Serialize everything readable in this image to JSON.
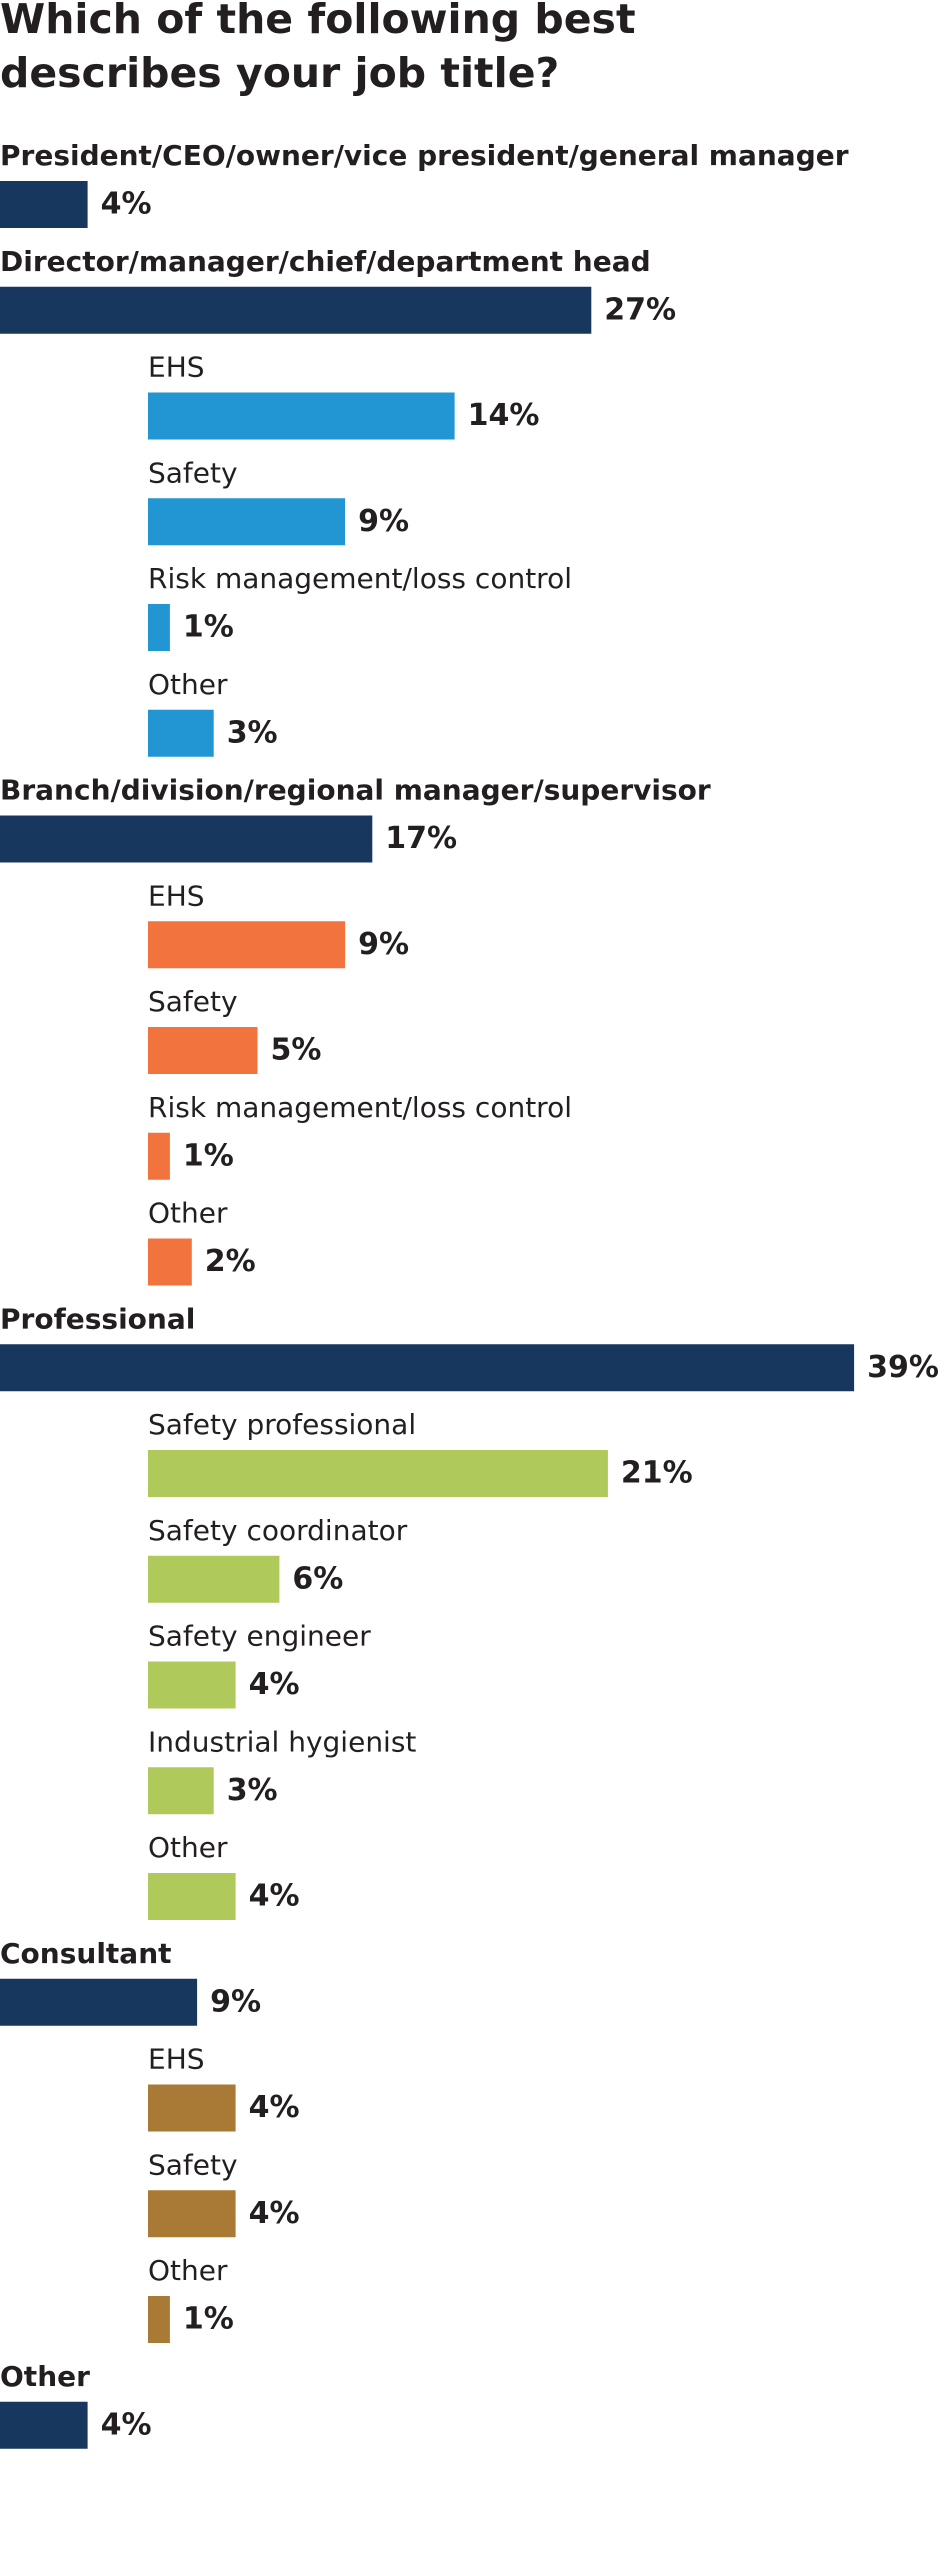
{
  "chart_data": {
    "type": "bar",
    "title": "Which of the following best describes your job title?",
    "groups": [
      {
        "name": "President/CEO/owner/vice president/general manager",
        "value": 4,
        "value_label": "4%",
        "color": "#17375e"
      },
      {
        "name": "Director/manager/chief/department head",
        "value": 27,
        "value_label": "27%",
        "color": "#17375e",
        "item_color": "#2196d3",
        "items": [
          {
            "name": "EHS",
            "value": 14,
            "value_label": "14%"
          },
          {
            "name": "Safety",
            "value": 9,
            "value_label": "9%"
          },
          {
            "name": "Risk management/loss control",
            "value": 1,
            "value_label": "1%"
          },
          {
            "name": "Other",
            "value": 3,
            "value_label": "3%"
          }
        ]
      },
      {
        "name": "Branch/division/regional manager/supervisor",
        "value": 17,
        "value_label": "17%",
        "color": "#17375e",
        "item_color": "#f2733e",
        "items": [
          {
            "name": "EHS",
            "value": 9,
            "value_label": "9%"
          },
          {
            "name": "Safety",
            "value": 5,
            "value_label": "5%"
          },
          {
            "name": "Risk management/loss control",
            "value": 1,
            "value_label": "1%"
          },
          {
            "name": "Other",
            "value": 2,
            "value_label": "2%"
          }
        ]
      },
      {
        "name": "Professional",
        "value": 39,
        "value_label": "39%",
        "color": "#17375e",
        "item_color": "#afc95a",
        "items": [
          {
            "name": "Safety professional",
            "value": 21,
            "value_label": "21%"
          },
          {
            "name": "Safety coordinator",
            "value": 6,
            "value_label": "6%"
          },
          {
            "name": "Safety engineer",
            "value": 4,
            "value_label": "4%"
          },
          {
            "name": "Industrial hygienist",
            "value": 3,
            "value_label": "3%"
          },
          {
            "name": "Other",
            "value": 4,
            "value_label": "4%"
          }
        ]
      },
      {
        "name": "Consultant",
        "value": 9,
        "value_label": "9%",
        "color": "#17375e",
        "item_color": "#a97a35",
        "items": [
          {
            "name": "EHS",
            "value": 4,
            "value_label": "4%"
          },
          {
            "name": "Safety",
            "value": 4,
            "value_label": "4%"
          },
          {
            "name": "Other",
            "value": 1,
            "value_label": "1%"
          }
        ]
      },
      {
        "name": "Other",
        "value": 4,
        "value_label": "4%",
        "color": "#17375e"
      }
    ]
  }
}
